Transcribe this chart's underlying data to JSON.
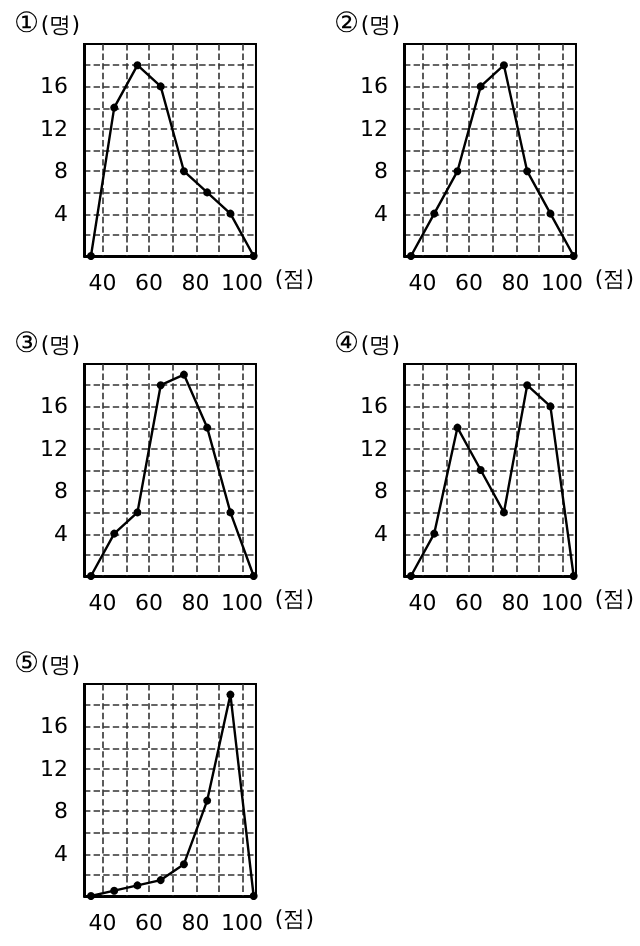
{
  "chart_data": [
    {
      "type": "line",
      "title": "①",
      "xlabel": "(점)",
      "ylabel": "(명)",
      "x": [
        35,
        45,
        55,
        65,
        75,
        85,
        95,
        105
      ],
      "series": [
        {
          "color": "#000000",
          "values": [
            0,
            14,
            18,
            16,
            8,
            6,
            4,
            0
          ]
        }
      ],
      "xlim": [
        32,
        106
      ],
      "ylim": [
        0,
        20
      ],
      "xticks": [
        40,
        {
          "value": 50,
          "label": null
        },
        60,
        {
          "value": 70,
          "label": null
        },
        80,
        {
          "value": 90,
          "label": null
        },
        100
      ],
      "yticks": [
        {
          "value": 2,
          "label": null
        },
        4,
        {
          "value": 6,
          "label": null
        },
        8,
        {
          "value": 10,
          "label": null
        },
        12,
        {
          "value": 14,
          "label": null
        },
        16,
        {
          "value": 18,
          "label": null
        }
      ],
      "grid": true,
      "marker": "circle",
      "line_style": "solid"
    },
    {
      "type": "line",
      "title": "②",
      "xlabel": "(점)",
      "ylabel": "(명)",
      "x": [
        35,
        45,
        55,
        65,
        75,
        85,
        95,
        105
      ],
      "series": [
        {
          "color": "#000000",
          "values": [
            0,
            4,
            8,
            16,
            18,
            8,
            4,
            0
          ]
        }
      ],
      "xlim": [
        32,
        106
      ],
      "ylim": [
        0,
        20
      ],
      "xticks": [
        40,
        {
          "value": 50,
          "label": null
        },
        60,
        {
          "value": 70,
          "label": null
        },
        80,
        {
          "value": 90,
          "label": null
        },
        100
      ],
      "yticks": [
        {
          "value": 2,
          "label": null
        },
        4,
        {
          "value": 6,
          "label": null
        },
        8,
        {
          "value": 10,
          "label": null
        },
        12,
        {
          "value": 14,
          "label": null
        },
        16,
        {
          "value": 18,
          "label": null
        }
      ],
      "grid": true,
      "marker": "circle",
      "line_style": "solid"
    },
    {
      "type": "line",
      "title": "③",
      "xlabel": "(점)",
      "ylabel": "(명)",
      "x": [
        35,
        45,
        55,
        65,
        75,
        85,
        95,
        105
      ],
      "series": [
        {
          "color": "#000000",
          "values": [
            0,
            4,
            6,
            18,
            19,
            14,
            6,
            0
          ]
        }
      ],
      "xlim": [
        32,
        106
      ],
      "ylim": [
        0,
        20
      ],
      "xticks": [
        40,
        {
          "value": 50,
          "label": null
        },
        60,
        {
          "value": 70,
          "label": null
        },
        80,
        {
          "value": 90,
          "label": null
        },
        100
      ],
      "yticks": [
        {
          "value": 2,
          "label": null
        },
        4,
        {
          "value": 6,
          "label": null
        },
        8,
        {
          "value": 10,
          "label": null
        },
        12,
        {
          "value": 14,
          "label": null
        },
        16,
        {
          "value": 18,
          "label": null
        }
      ],
      "grid": true,
      "marker": "circle",
      "line_style": "solid"
    },
    {
      "type": "line",
      "title": "④",
      "xlabel": "(점)",
      "ylabel": "(명)",
      "x": [
        35,
        45,
        55,
        65,
        75,
        85,
        95,
        105
      ],
      "series": [
        {
          "color": "#000000",
          "values": [
            0,
            4,
            14,
            10,
            6,
            18,
            16,
            0
          ]
        }
      ],
      "xlim": [
        32,
        106
      ],
      "ylim": [
        0,
        20
      ],
      "xticks": [
        40,
        {
          "value": 50,
          "label": null
        },
        60,
        {
          "value": 70,
          "label": null
        },
        80,
        {
          "value": 90,
          "label": null
        },
        100
      ],
      "yticks": [
        {
          "value": 2,
          "label": null
        },
        4,
        {
          "value": 6,
          "label": null
        },
        8,
        {
          "value": 10,
          "label": null
        },
        12,
        {
          "value": 14,
          "label": null
        },
        16,
        {
          "value": 18,
          "label": null
        }
      ],
      "grid": true,
      "marker": "circle",
      "line_style": "solid"
    },
    {
      "type": "line",
      "title": "⑤",
      "xlabel": "(점)",
      "ylabel": "(명)",
      "x": [
        35,
        45,
        55,
        65,
        75,
        85,
        95,
        105
      ],
      "series": [
        {
          "color": "#000000",
          "values": [
            0,
            0.5,
            1,
            1.5,
            3,
            9,
            19,
            0
          ]
        }
      ],
      "xlim": [
        32,
        106
      ],
      "ylim": [
        0,
        20
      ],
      "xticks": [
        40,
        {
          "value": 50,
          "label": null
        },
        60,
        {
          "value": 70,
          "label": null
        },
        80,
        {
          "value": 90,
          "label": null
        },
        100
      ],
      "yticks": [
        {
          "value": 2,
          "label": null
        },
        4,
        {
          "value": 6,
          "label": null
        },
        8,
        {
          "value": 10,
          "label": null
        },
        12,
        {
          "value": 14,
          "label": null
        },
        16,
        {
          "value": 18,
          "label": null
        }
      ],
      "grid": true,
      "marker": "circle",
      "line_style": "solid"
    }
  ]
}
